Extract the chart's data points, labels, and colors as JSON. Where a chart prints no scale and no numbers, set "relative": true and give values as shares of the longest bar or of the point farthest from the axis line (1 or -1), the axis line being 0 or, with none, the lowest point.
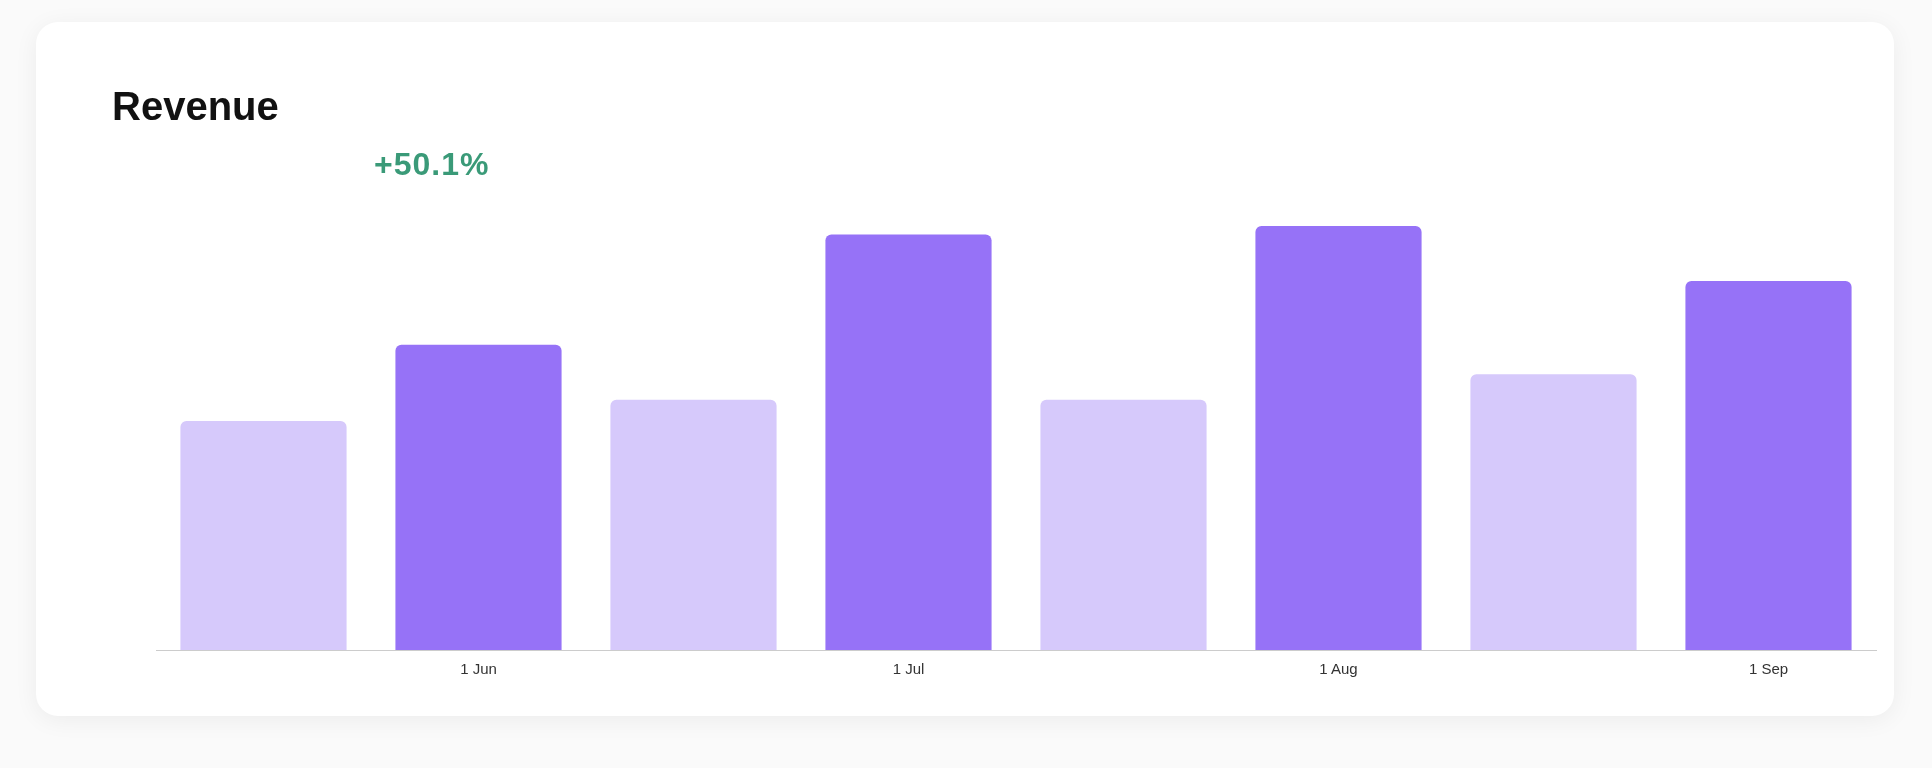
{
  "chart_data": {
    "type": "bar",
    "title": "Revenue",
    "subtitle": "+50.1%",
    "relative": true,
    "categories": [
      null,
      "1 Jun",
      null,
      "1 Jul",
      null,
      "1 Aug",
      null,
      "1 Sep"
    ],
    "values": [
      0.54,
      0.72,
      0.59,
      0.98,
      0.59,
      1,
      0.65,
      0.87
    ],
    "colors": [
      "#d6c9fb",
      "#9672f7",
      "#d6c9fb",
      "#9672f7",
      "#d6c9fb",
      "#9672f7",
      "#d6c9fb",
      "#9672f7"
    ]
  }
}
